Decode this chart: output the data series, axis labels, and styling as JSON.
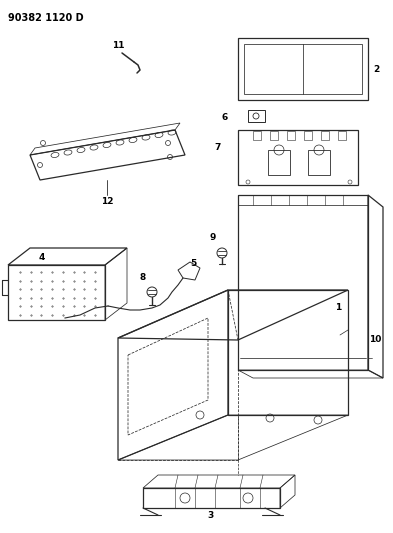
{
  "title": "90382 1120 D",
  "background_color": "#ffffff",
  "line_color": "#2a2a2a",
  "label_color": "#000000",
  "figsize": [
    3.93,
    5.33
  ],
  "dpi": 100
}
